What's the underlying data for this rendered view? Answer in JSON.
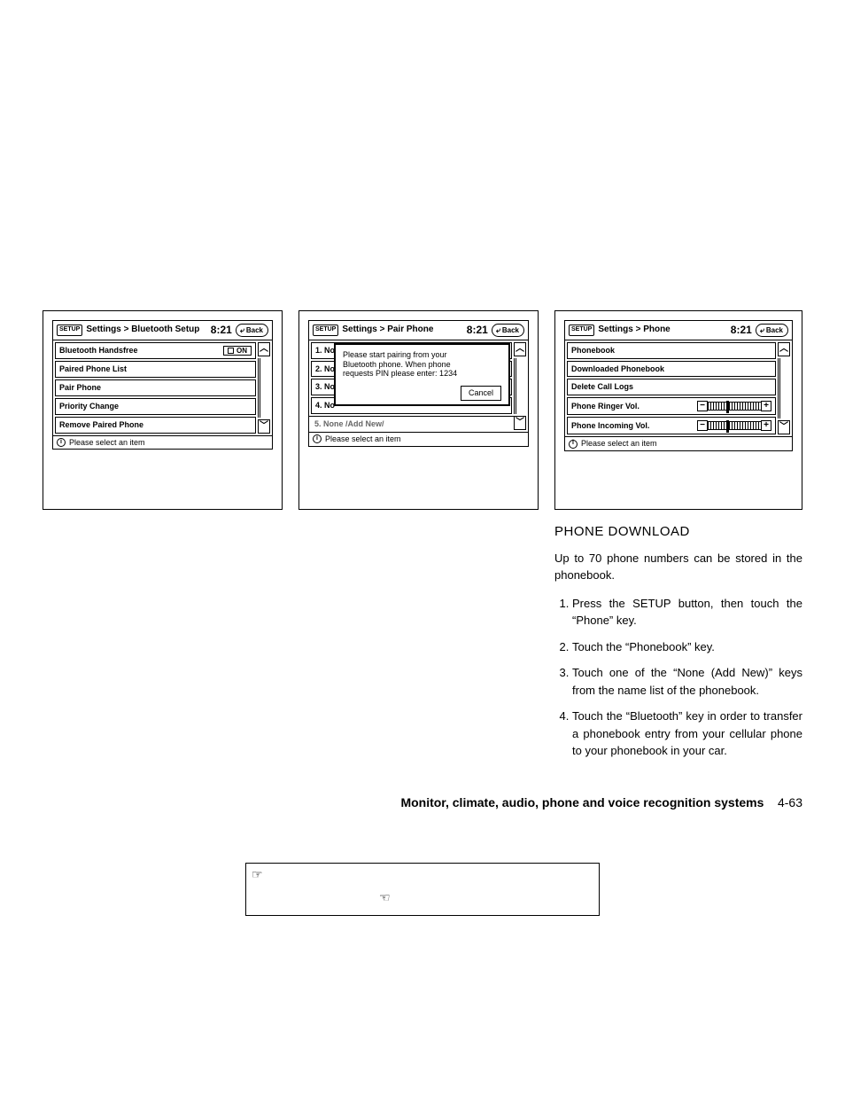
{
  "header": {
    "setup_icon_label": "SETUP",
    "clock": "8:21",
    "back_label": "Back"
  },
  "screen1": {
    "breadcrumb": "Settings > Bluetooth Setup",
    "items": [
      {
        "label": "Bluetooth Handsfree",
        "toggle": "ON"
      },
      {
        "label": "Paired Phone List"
      },
      {
        "label": "Pair Phone"
      },
      {
        "label": "Priority Change"
      },
      {
        "label": "Remove Paired Phone"
      }
    ],
    "footer": "Please select an item"
  },
  "screen2": {
    "breadcrumb": "Settings > Pair Phone",
    "items": [
      {
        "label": "1. No"
      },
      {
        "label": "2. No"
      },
      {
        "label": "3. No"
      },
      {
        "label": "4. No"
      },
      {
        "label": "5. None /Add New/"
      }
    ],
    "popup": {
      "line1": "Please start pairing from your",
      "line2": "Bluetooth phone. When phone",
      "line3": "requests PIN please enter: 1234",
      "cancel": "Cancel"
    },
    "footer": "Please select an item"
  },
  "screen3": {
    "breadcrumb": "Settings > Phone",
    "items": [
      {
        "label": "Phonebook"
      },
      {
        "label": "Downloaded Phonebook"
      },
      {
        "label": "Delete Call Logs"
      },
      {
        "label": "Phone Ringer Vol.",
        "slider_pos_pct": 35
      },
      {
        "label": "Phone Incoming Vol.",
        "slider_pos_pct": 35
      }
    ],
    "footer": "Please select an item"
  },
  "article": {
    "heading": "PHONE DOWNLOAD",
    "intro": "Up to 70 phone numbers can be stored in the phonebook.",
    "steps": [
      "Press the SETUP button, then touch the “Phone” key.",
      "Touch the “Phonebook” key.",
      "Touch one of the “None (Add New)” keys from the name list of the phonebook.",
      "Touch the “Bluetooth” key in order to transfer a phonebook entry from your cellular phone to your phonebook in your car."
    ]
  },
  "page_footer": {
    "section": "Monitor, climate, audio, phone and voice recognition systems",
    "page": "4-63"
  }
}
